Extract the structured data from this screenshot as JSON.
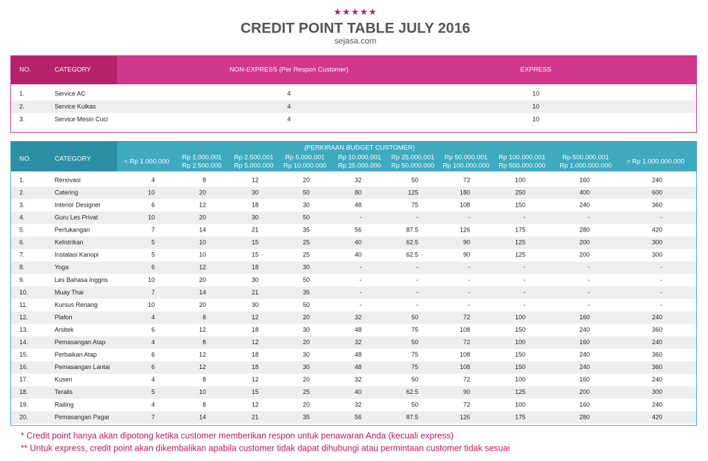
{
  "header": {
    "title": "CREDIT POINT TABLE JULY 2016",
    "brand": "sejasa.com"
  },
  "table1": {
    "columns": [
      "NO.",
      "CATEGORY",
      "NON-EXPRESS (Per Respon Customer)",
      "EXPRESS"
    ],
    "rows": [
      [
        "1.",
        "Service AC",
        4,
        10
      ],
      [
        "2.",
        "Service Kulkas",
        4,
        10
      ],
      [
        "3.",
        "Service Mesin Cuci",
        4,
        10
      ]
    ]
  },
  "table2": {
    "no_label": "NO.",
    "category_label": "CATEGORY",
    "budget_label": "(PERKIRAAN BUDGET CUSTOMER)",
    "columns": [
      [
        "< Rp 1.000.000"
      ],
      [
        "Rp 1.000.001",
        "Rp 2.500.000"
      ],
      [
        "Rp 2.500.001",
        "Rp 5.000.000"
      ],
      [
        "Rp 5.000.001",
        "Rp 10.000.000"
      ],
      [
        "Rp 10.000.001",
        "Rp 25.000.000"
      ],
      [
        "Rp 25.000.001",
        "Rp 50.000.000"
      ],
      [
        "Rp 50.000.001",
        "Rp 100.000.000"
      ],
      [
        "Rp 100.000.001",
        "Rp 500.000.000"
      ],
      [
        "Rp 500.000.001",
        "Rp 1.000.000.000"
      ],
      [
        "> Rp 1.000.000.000"
      ]
    ],
    "rows": [
      {
        "no": "1.",
        "category": "Renovasi",
        "values": [
          4,
          8,
          12,
          20,
          32,
          50,
          72,
          100,
          160,
          240
        ]
      },
      {
        "no": "2.",
        "category": "Catering",
        "values": [
          10,
          20,
          30,
          50,
          80,
          125,
          180,
          250,
          400,
          600
        ]
      },
      {
        "no": "3.",
        "category": "Interior Designer",
        "values": [
          6,
          12,
          18,
          30,
          48,
          75,
          108,
          150,
          240,
          360
        ]
      },
      {
        "no": "4.",
        "category": "Guru Les Privat",
        "values": [
          10,
          20,
          30,
          50,
          "-",
          "-",
          "-",
          "-",
          "-",
          "-"
        ]
      },
      {
        "no": "5.",
        "category": "Pertukangan",
        "values": [
          7,
          14,
          21,
          35,
          56,
          87.5,
          126,
          175,
          280,
          420
        ]
      },
      {
        "no": "6.",
        "category": "Kelistrikan",
        "values": [
          5,
          10,
          15,
          25,
          40,
          62.5,
          90,
          125,
          200,
          300
        ]
      },
      {
        "no": "7.",
        "category": "Instalasi Kanopi",
        "values": [
          5,
          10,
          15,
          25,
          40,
          62.5,
          90,
          125,
          200,
          300
        ]
      },
      {
        "no": "8.",
        "category": "Yoga",
        "values": [
          6,
          12,
          18,
          30,
          "-",
          "-",
          "-",
          "-",
          "-",
          "-"
        ]
      },
      {
        "no": "9.",
        "category": "Les Bahasa Inggris",
        "values": [
          10,
          20,
          30,
          50,
          "-",
          "-",
          "-",
          "-",
          "-",
          "-"
        ]
      },
      {
        "no": "10.",
        "category": "Muay Thai",
        "values": [
          7,
          14,
          21,
          35,
          "-",
          "-",
          "-",
          "-",
          "-",
          "-"
        ]
      },
      {
        "no": "11.",
        "category": "Kursus Renang",
        "values": [
          10,
          20,
          30,
          50,
          "-",
          "-",
          "-",
          "-",
          "-",
          "-"
        ]
      },
      {
        "no": "12.",
        "category": "Plafon",
        "values": [
          4,
          8,
          12,
          20,
          32,
          50,
          72,
          100,
          160,
          240
        ]
      },
      {
        "no": "13.",
        "category": "Arsitek",
        "values": [
          6,
          12,
          18,
          30,
          48,
          75,
          108,
          150,
          240,
          360
        ]
      },
      {
        "no": "14.",
        "category": "Pemasangan Atap",
        "values": [
          4,
          8,
          12,
          20,
          32,
          50,
          72,
          100,
          160,
          240
        ]
      },
      {
        "no": "15.",
        "category": "Perbaikan Atap",
        "values": [
          6,
          12,
          18,
          30,
          48,
          75,
          108,
          150,
          240,
          360
        ]
      },
      {
        "no": "16.",
        "category": "Pemasangan Lantai",
        "values": [
          6,
          12,
          18,
          30,
          48,
          75,
          108,
          150,
          240,
          360
        ]
      },
      {
        "no": "17.",
        "category": "Kusen",
        "values": [
          4,
          8,
          12,
          20,
          32,
          50,
          72,
          100,
          160,
          240
        ]
      },
      {
        "no": "18.",
        "category": "Teralis",
        "values": [
          5,
          10,
          15,
          25,
          40,
          62.5,
          90,
          125,
          200,
          300
        ]
      },
      {
        "no": "19.",
        "category": "Railing",
        "values": [
          4,
          8,
          12,
          20,
          32,
          50,
          72,
          100,
          160,
          240
        ]
      },
      {
        "no": "20.",
        "category": "Pemasangan Pagar",
        "values": [
          7,
          14,
          21,
          35,
          56,
          87.5,
          126,
          175,
          280,
          420
        ]
      }
    ]
  },
  "notes": [
    "* Credit point hanya akan dipotong ketika customer memberikan respon untuk penawaran Anda (kecuali express)",
    "** Untuk express, credit point akan dikembalikan apabila customer tidak dapat dihubungi atau permintaan customer tidak sesuai"
  ]
}
